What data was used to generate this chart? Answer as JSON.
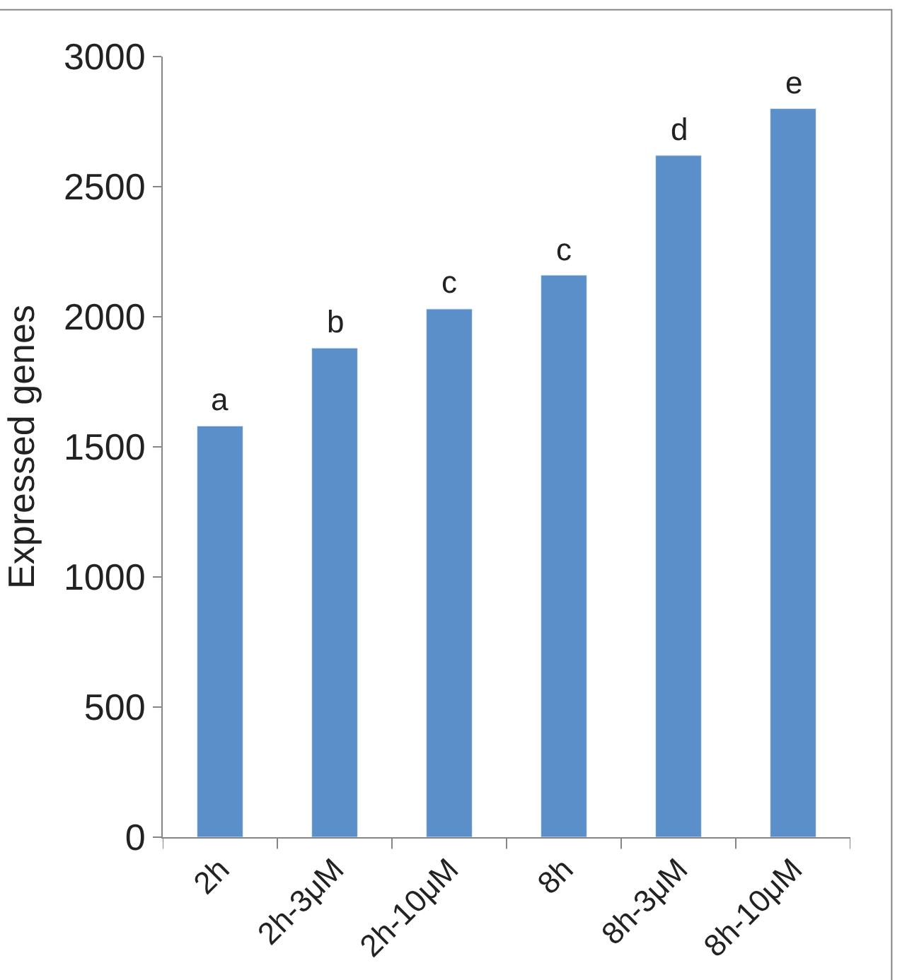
{
  "chart_data": {
    "type": "bar",
    "ylabel": "Expressed genes",
    "categories": [
      "2h",
      "2h-3μM",
      "2h-10μM",
      "8h",
      "8h-3μM",
      "8h-10μM"
    ],
    "values": [
      1580,
      1880,
      2030,
      2160,
      2620,
      2800
    ],
    "color": "#5b8fc9",
    "ylim": [
      0,
      3000
    ],
    "yticks": [
      0,
      500,
      1000,
      1500,
      2000,
      2500,
      3000
    ],
    "annotations": [
      {
        "text": "a",
        "x": "2h",
        "y": 1580
      },
      {
        "text": "b",
        "x": "2h-3μM",
        "y": 1880
      },
      {
        "text": "c",
        "x": "2h-10μM",
        "y": 2030
      },
      {
        "text": "c",
        "x": "8h",
        "y": 2160
      },
      {
        "text": "d",
        "x": "8h-3μM",
        "y": 2620
      },
      {
        "text": "e",
        "x": "8h-10μM",
        "y": 2800
      }
    ]
  }
}
